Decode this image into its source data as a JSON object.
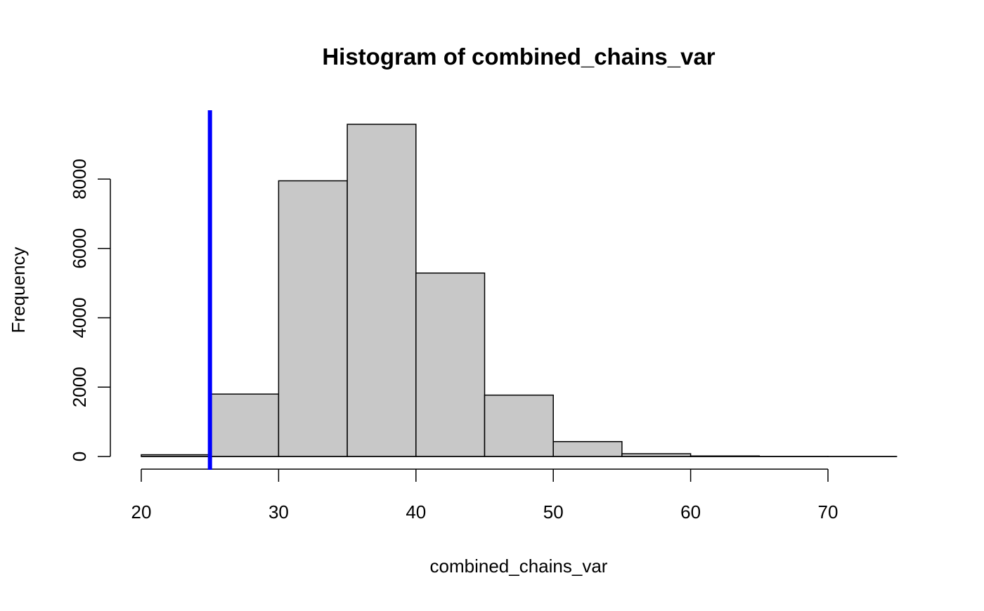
{
  "chart_data": {
    "type": "bar",
    "title": "Histogram of combined_chains_var",
    "xlabel": "combined_chains_var",
    "ylabel": "Frequency",
    "bins": [
      {
        "start": 20,
        "end": 25,
        "count": 50
      },
      {
        "start": 25,
        "end": 30,
        "count": 1800
      },
      {
        "start": 30,
        "end": 35,
        "count": 7950
      },
      {
        "start": 35,
        "end": 40,
        "count": 9580
      },
      {
        "start": 40,
        "end": 45,
        "count": 5290
      },
      {
        "start": 45,
        "end": 50,
        "count": 1770
      },
      {
        "start": 50,
        "end": 55,
        "count": 430
      },
      {
        "start": 55,
        "end": 60,
        "count": 80
      },
      {
        "start": 60,
        "end": 65,
        "count": 15
      },
      {
        "start": 65,
        "end": 70,
        "count": 3
      },
      {
        "start": 70,
        "end": 75,
        "count": 1
      }
    ],
    "xlim": [
      20,
      75
    ],
    "ylim": [
      0,
      10000
    ],
    "x_ticks": [
      20,
      30,
      40,
      50,
      60,
      70
    ],
    "y_ticks": [
      0,
      2000,
      4000,
      6000,
      8000
    ],
    "reference_line": {
      "x": 25
    },
    "grid": false,
    "colors": {
      "bar_fill": "#c8c8c8",
      "bar_stroke": "#000000",
      "reference_line": "#0000ff"
    }
  }
}
